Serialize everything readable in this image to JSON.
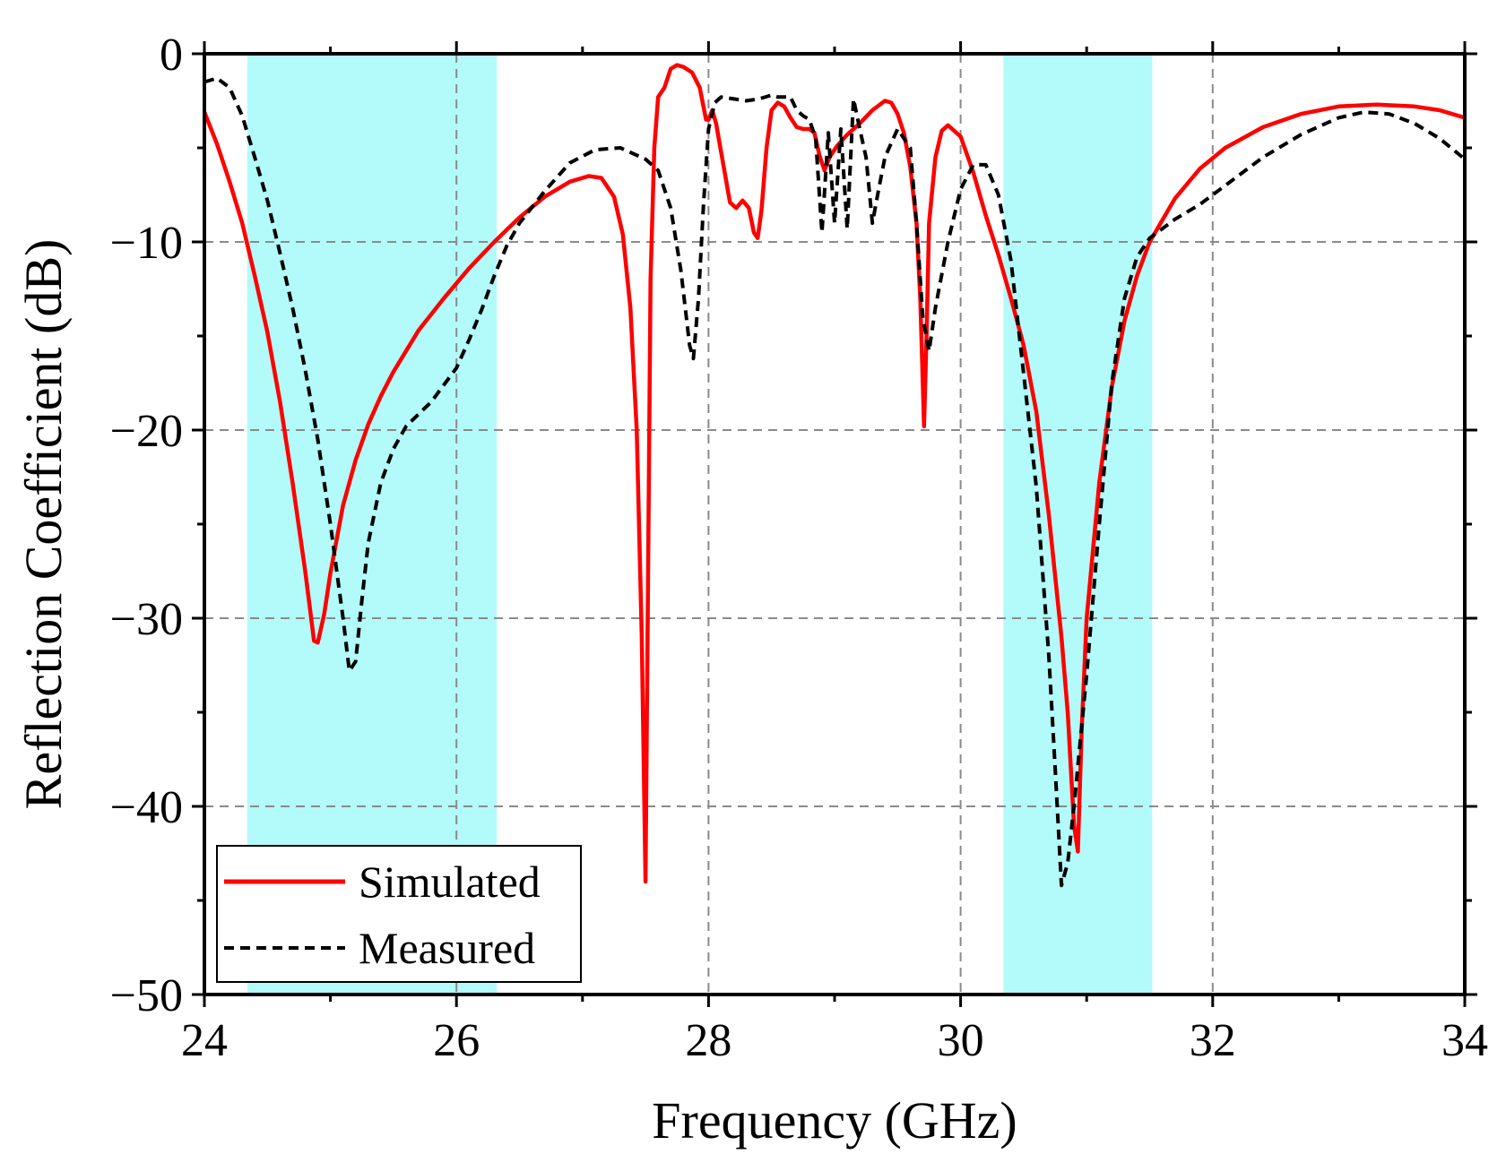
{
  "chart_data": {
    "type": "line",
    "title": "",
    "xlabel": "Frequency (GHz)",
    "ylabel": "Reflection Coefficient (dB)",
    "xlim": [
      24,
      34
    ],
    "ylim": [
      -50,
      0
    ],
    "x_ticks": [
      24,
      26,
      28,
      30,
      32,
      34
    ],
    "x_tick_labels": [
      "24",
      "26",
      "28",
      "30",
      "32",
      "34"
    ],
    "y_ticks": [
      0,
      -10,
      -20,
      -30,
      -40,
      -50
    ],
    "y_tick_labels": [
      "0",
      "−10",
      "−20",
      "−30",
      "−40",
      "−50"
    ],
    "grid": true,
    "legend_position": "bottom-left",
    "highlight_bands": [
      {
        "x0": 24.34,
        "x1": 26.32,
        "color": "#b3fafa"
      },
      {
        "x0": 30.34,
        "x1": 31.52,
        "color": "#b3fafa"
      }
    ],
    "series": [
      {
        "name": "Simulated",
        "color": "#ff0000",
        "style": "solid",
        "points": [
          [
            24.0,
            -3.1
          ],
          [
            24.1,
            -4.8
          ],
          [
            24.2,
            -6.8
          ],
          [
            24.3,
            -9.0
          ],
          [
            24.4,
            -11.8
          ],
          [
            24.5,
            -14.8
          ],
          [
            24.6,
            -18.5
          ],
          [
            24.7,
            -22.8
          ],
          [
            24.8,
            -27.5
          ],
          [
            24.87,
            -31.2
          ],
          [
            24.9,
            -31.3
          ],
          [
            24.95,
            -29.8
          ],
          [
            25.0,
            -27.6
          ],
          [
            25.1,
            -24.0
          ],
          [
            25.2,
            -21.6
          ],
          [
            25.3,
            -19.7
          ],
          [
            25.4,
            -18.2
          ],
          [
            25.5,
            -16.9
          ],
          [
            25.7,
            -14.7
          ],
          [
            25.9,
            -13.0
          ],
          [
            26.1,
            -11.4
          ],
          [
            26.3,
            -10.0
          ],
          [
            26.5,
            -8.7
          ],
          [
            26.7,
            -7.6
          ],
          [
            26.9,
            -6.8
          ],
          [
            27.05,
            -6.5
          ],
          [
            27.15,
            -6.6
          ],
          [
            27.25,
            -7.6
          ],
          [
            27.32,
            -9.6
          ],
          [
            27.38,
            -13.5
          ],
          [
            27.43,
            -20.0
          ],
          [
            27.47,
            -31.0
          ],
          [
            27.5,
            -44.0
          ],
          [
            27.52,
            -28.0
          ],
          [
            27.54,
            -12.0
          ],
          [
            27.57,
            -5.0
          ],
          [
            27.6,
            -2.3
          ],
          [
            27.65,
            -1.8
          ],
          [
            27.7,
            -0.8
          ],
          [
            27.75,
            -0.6
          ],
          [
            27.8,
            -0.7
          ],
          [
            27.87,
            -1.0
          ],
          [
            27.93,
            -1.8
          ],
          [
            27.98,
            -3.5
          ],
          [
            28.0,
            -3.5
          ],
          [
            28.03,
            -3.0
          ],
          [
            28.06,
            -3.7
          ],
          [
            28.12,
            -6.0
          ],
          [
            28.17,
            -7.9
          ],
          [
            28.22,
            -8.2
          ],
          [
            28.27,
            -7.8
          ],
          [
            28.32,
            -8.2
          ],
          [
            28.36,
            -9.5
          ],
          [
            28.39,
            -9.8
          ],
          [
            28.42,
            -8.3
          ],
          [
            28.46,
            -5.0
          ],
          [
            28.5,
            -3.0
          ],
          [
            28.55,
            -2.6
          ],
          [
            28.6,
            -2.8
          ],
          [
            28.65,
            -3.4
          ],
          [
            28.7,
            -3.9
          ],
          [
            28.75,
            -4.0
          ],
          [
            28.8,
            -4.0
          ],
          [
            28.84,
            -4.2
          ],
          [
            28.88,
            -5.4
          ],
          [
            28.92,
            -6.2
          ],
          [
            28.96,
            -5.5
          ],
          [
            29.02,
            -4.9
          ],
          [
            29.1,
            -4.3
          ],
          [
            29.2,
            -3.7
          ],
          [
            29.3,
            -3.0
          ],
          [
            29.4,
            -2.5
          ],
          [
            29.45,
            -2.6
          ],
          [
            29.5,
            -3.2
          ],
          [
            29.55,
            -4.2
          ],
          [
            29.6,
            -6.0
          ],
          [
            29.65,
            -9.0
          ],
          [
            29.68,
            -13.0
          ],
          [
            29.7,
            -17.5
          ],
          [
            29.71,
            -19.8
          ],
          [
            29.73,
            -15.0
          ],
          [
            29.75,
            -9.0
          ],
          [
            29.8,
            -5.5
          ],
          [
            29.85,
            -4.1
          ],
          [
            29.9,
            -3.8
          ],
          [
            30.0,
            -4.4
          ],
          [
            30.1,
            -6.3
          ],
          [
            30.2,
            -8.6
          ],
          [
            30.3,
            -10.7
          ],
          [
            30.4,
            -13.0
          ],
          [
            30.5,
            -15.5
          ],
          [
            30.6,
            -19.0
          ],
          [
            30.7,
            -24.5
          ],
          [
            30.8,
            -31.0
          ],
          [
            30.85,
            -35.0
          ],
          [
            30.9,
            -41.0
          ],
          [
            30.93,
            -42.4
          ],
          [
            30.96,
            -36.0
          ],
          [
            31.0,
            -30.0
          ],
          [
            31.1,
            -22.8
          ],
          [
            31.2,
            -17.7
          ],
          [
            31.3,
            -14.2
          ],
          [
            31.4,
            -11.8
          ],
          [
            31.5,
            -10.0
          ],
          [
            31.7,
            -7.7
          ],
          [
            31.9,
            -6.1
          ],
          [
            32.1,
            -5.0
          ],
          [
            32.4,
            -3.9
          ],
          [
            32.7,
            -3.2
          ],
          [
            33.0,
            -2.8
          ],
          [
            33.3,
            -2.7
          ],
          [
            33.6,
            -2.8
          ],
          [
            33.8,
            -3.0
          ],
          [
            34.0,
            -3.4
          ]
        ]
      },
      {
        "name": "Measured",
        "color": "#000000",
        "style": "dashed",
        "points": [
          [
            24.0,
            -1.5
          ],
          [
            24.1,
            -1.3
          ],
          [
            24.2,
            -1.8
          ],
          [
            24.3,
            -3.3
          ],
          [
            24.4,
            -5.5
          ],
          [
            24.5,
            -7.8
          ],
          [
            24.6,
            -10.6
          ],
          [
            24.7,
            -13.5
          ],
          [
            24.8,
            -16.8
          ],
          [
            24.9,
            -20.5
          ],
          [
            25.0,
            -25.0
          ],
          [
            25.1,
            -30.0
          ],
          [
            25.15,
            -32.8
          ],
          [
            25.2,
            -32.3
          ],
          [
            25.25,
            -29.0
          ],
          [
            25.3,
            -26.0
          ],
          [
            25.4,
            -22.8
          ],
          [
            25.5,
            -21.0
          ],
          [
            25.6,
            -19.8
          ],
          [
            25.8,
            -18.5
          ],
          [
            26.0,
            -16.7
          ],
          [
            26.1,
            -15.2
          ],
          [
            26.2,
            -13.6
          ],
          [
            26.3,
            -11.8
          ],
          [
            26.4,
            -10.2
          ],
          [
            26.5,
            -9.0
          ],
          [
            26.7,
            -7.3
          ],
          [
            26.9,
            -5.8
          ],
          [
            27.1,
            -5.1
          ],
          [
            27.3,
            -5.0
          ],
          [
            27.5,
            -5.6
          ],
          [
            27.6,
            -6.2
          ],
          [
            27.7,
            -8.2
          ],
          [
            27.78,
            -11.5
          ],
          [
            27.85,
            -15.5
          ],
          [
            27.88,
            -16.2
          ],
          [
            27.92,
            -13.0
          ],
          [
            27.96,
            -8.0
          ],
          [
            28.0,
            -4.0
          ],
          [
            28.05,
            -2.6
          ],
          [
            28.1,
            -2.3
          ],
          [
            28.2,
            -2.4
          ],
          [
            28.3,
            -2.5
          ],
          [
            28.4,
            -2.4
          ],
          [
            28.5,
            -2.2
          ],
          [
            28.55,
            -2.3
          ],
          [
            28.6,
            -2.3
          ],
          [
            28.65,
            -2.3
          ],
          [
            28.7,
            -3.0
          ],
          [
            28.75,
            -3.3
          ],
          [
            28.8,
            -3.5
          ],
          [
            28.85,
            -4.5
          ],
          [
            28.9,
            -9.5
          ],
          [
            28.95,
            -4.2
          ],
          [
            29.0,
            -9.0
          ],
          [
            29.05,
            -4.0
          ],
          [
            29.1,
            -9.3
          ],
          [
            29.15,
            -2.4
          ],
          [
            29.2,
            -4.0
          ],
          [
            29.25,
            -5.5
          ],
          [
            29.3,
            -9.0
          ],
          [
            29.35,
            -7.2
          ],
          [
            29.4,
            -5.5
          ],
          [
            29.5,
            -4.0
          ],
          [
            29.6,
            -5.0
          ],
          [
            29.65,
            -9.0
          ],
          [
            29.7,
            -14.0
          ],
          [
            29.75,
            -15.8
          ],
          [
            29.8,
            -13.5
          ],
          [
            29.9,
            -10.0
          ],
          [
            30.0,
            -7.2
          ],
          [
            30.1,
            -5.9
          ],
          [
            30.2,
            -5.9
          ],
          [
            30.3,
            -7.5
          ],
          [
            30.4,
            -11.0
          ],
          [
            30.5,
            -17.0
          ],
          [
            30.6,
            -23.0
          ],
          [
            30.7,
            -32.0
          ],
          [
            30.75,
            -38.0
          ],
          [
            30.8,
            -44.2
          ],
          [
            30.85,
            -43.0
          ],
          [
            30.9,
            -40.0
          ],
          [
            31.0,
            -33.0
          ],
          [
            31.1,
            -25.0
          ],
          [
            31.2,
            -17.5
          ],
          [
            31.3,
            -13.0
          ],
          [
            31.4,
            -10.8
          ],
          [
            31.5,
            -9.8
          ],
          [
            31.7,
            -8.8
          ],
          [
            31.9,
            -8.0
          ],
          [
            32.1,
            -7.0
          ],
          [
            32.4,
            -5.5
          ],
          [
            32.7,
            -4.3
          ],
          [
            33.0,
            -3.4
          ],
          [
            33.2,
            -3.1
          ],
          [
            33.4,
            -3.2
          ],
          [
            33.6,
            -3.7
          ],
          [
            33.8,
            -4.5
          ],
          [
            34.0,
            -5.6
          ]
        ]
      }
    ]
  }
}
